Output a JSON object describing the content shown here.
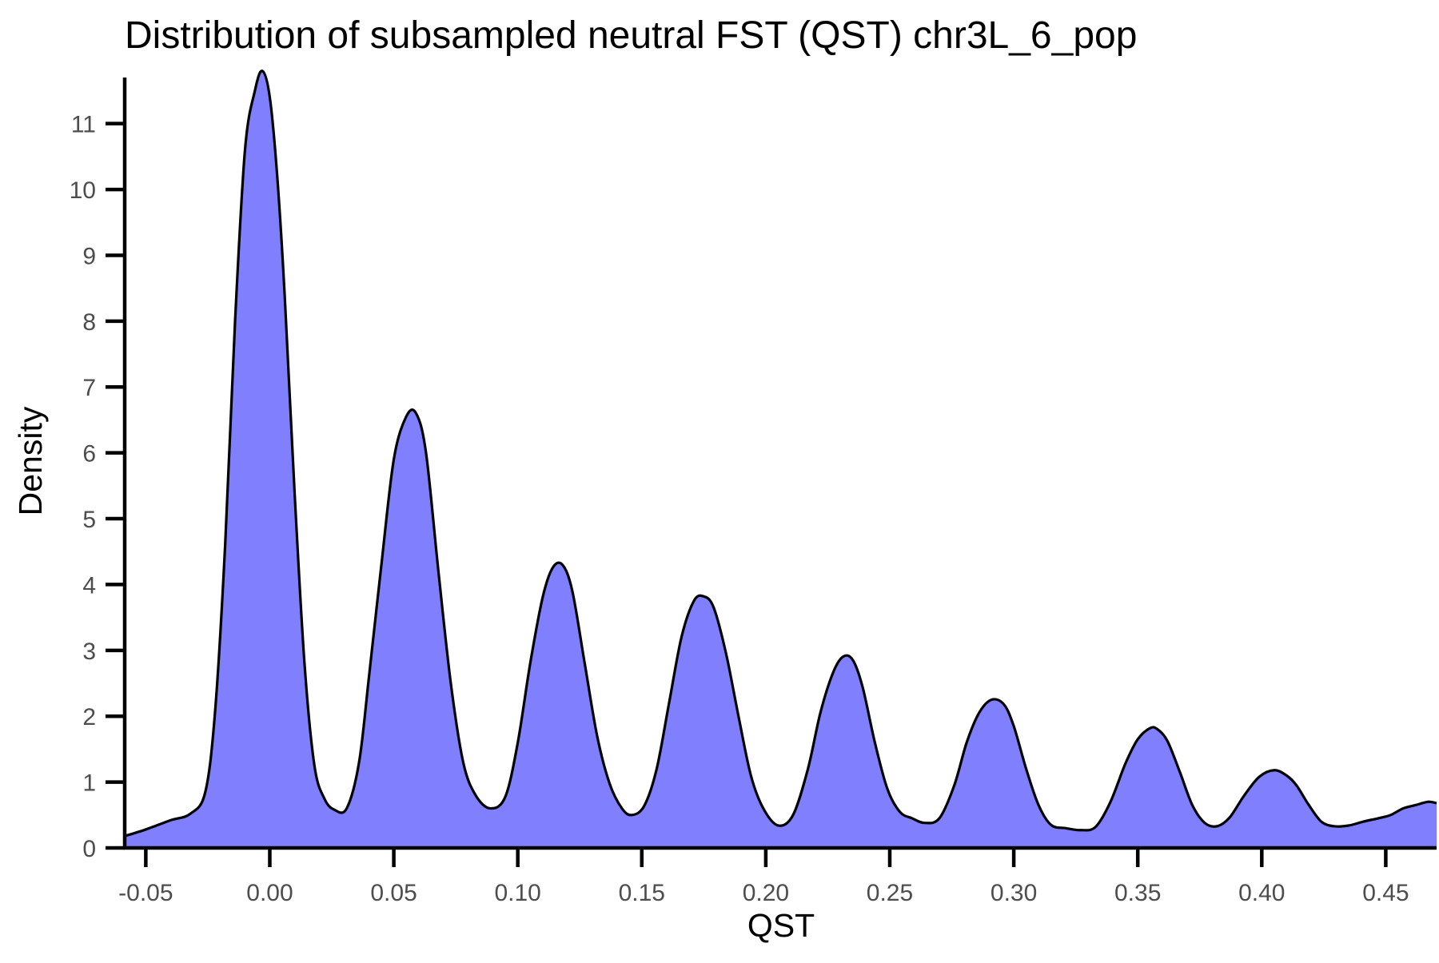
{
  "chart_data": {
    "type": "area",
    "title": "Distribution of subsampled neutral FST (QST) chr3L_6_pop",
    "xlabel": "QST",
    "ylabel": "Density",
    "xlim": [
      -0.0585,
      0.4705
    ],
    "ylim": [
      0,
      11.7
    ],
    "grid": false,
    "legend": "none",
    "fill_color": "#8080ff",
    "line_color": "#000000",
    "x_ticks": [
      -0.05,
      0.0,
      0.05,
      0.1,
      0.15,
      0.2,
      0.25,
      0.3,
      0.35,
      0.4,
      0.45
    ],
    "x_tick_labels": [
      "-0.05",
      "0.00",
      "0.05",
      "0.10",
      "0.15",
      "0.20",
      "0.25",
      "0.30",
      "0.35",
      "0.40",
      "0.45"
    ],
    "y_ticks": [
      0,
      1,
      2,
      3,
      4,
      5,
      6,
      7,
      8,
      9,
      10,
      11
    ],
    "y_tick_labels": [
      "0",
      "1",
      "2",
      "3",
      "4",
      "5",
      "6",
      "7",
      "8",
      "9",
      "10",
      "11"
    ],
    "x": [
      -0.0585,
      -0.05,
      -0.04,
      -0.032,
      -0.026,
      -0.022,
      -0.018,
      -0.014,
      -0.01,
      -0.006,
      -0.003,
      0.0,
      0.003,
      0.006,
      0.01,
      0.014,
      0.018,
      0.022,
      0.026,
      0.031,
      0.036,
      0.04,
      0.045,
      0.05,
      0.055,
      0.059,
      0.063,
      0.068,
      0.073,
      0.078,
      0.083,
      0.089,
      0.095,
      0.1,
      0.105,
      0.11,
      0.114,
      0.118,
      0.122,
      0.127,
      0.132,
      0.137,
      0.142,
      0.146,
      0.151,
      0.156,
      0.161,
      0.166,
      0.171,
      0.175,
      0.179,
      0.184,
      0.189,
      0.194,
      0.199,
      0.205,
      0.211,
      0.217,
      0.222,
      0.227,
      0.231,
      0.235,
      0.239,
      0.244,
      0.249,
      0.254,
      0.259,
      0.264,
      0.27,
      0.276,
      0.281,
      0.286,
      0.291,
      0.296,
      0.3,
      0.305,
      0.31,
      0.315,
      0.321,
      0.327,
      0.333,
      0.339,
      0.345,
      0.35,
      0.355,
      0.358,
      0.362,
      0.367,
      0.372,
      0.377,
      0.382,
      0.387,
      0.393,
      0.399,
      0.405,
      0.41,
      0.414,
      0.419,
      0.424,
      0.429,
      0.435,
      0.441,
      0.447,
      0.452,
      0.457,
      0.462,
      0.467,
      0.4705
    ],
    "y": [
      0.18,
      0.28,
      0.42,
      0.52,
      0.85,
      2.1,
      4.6,
      8.0,
      10.6,
      11.5,
      11.8,
      11.4,
      10.2,
      8.4,
      5.4,
      2.8,
      1.25,
      0.75,
      0.58,
      0.6,
      1.3,
      2.6,
      4.3,
      5.9,
      6.55,
      6.6,
      6.0,
      4.2,
      2.5,
      1.3,
      0.8,
      0.6,
      0.78,
      1.6,
      2.8,
      3.8,
      4.25,
      4.3,
      3.9,
      2.8,
      1.7,
      0.98,
      0.6,
      0.5,
      0.64,
      1.2,
      2.2,
      3.2,
      3.75,
      3.82,
      3.65,
      2.95,
      2.0,
      1.1,
      0.6,
      0.34,
      0.5,
      1.2,
      2.05,
      2.65,
      2.9,
      2.86,
      2.45,
      1.6,
      0.9,
      0.55,
      0.45,
      0.38,
      0.45,
      0.95,
      1.6,
      2.05,
      2.25,
      2.18,
      1.85,
      1.2,
      0.65,
      0.35,
      0.3,
      0.27,
      0.32,
      0.7,
      1.28,
      1.65,
      1.82,
      1.8,
      1.62,
      1.15,
      0.65,
      0.38,
      0.33,
      0.46,
      0.8,
      1.08,
      1.18,
      1.1,
      0.95,
      0.65,
      0.4,
      0.33,
      0.34,
      0.4,
      0.45,
      0.5,
      0.6,
      0.65,
      0.7,
      0.68
    ]
  }
}
